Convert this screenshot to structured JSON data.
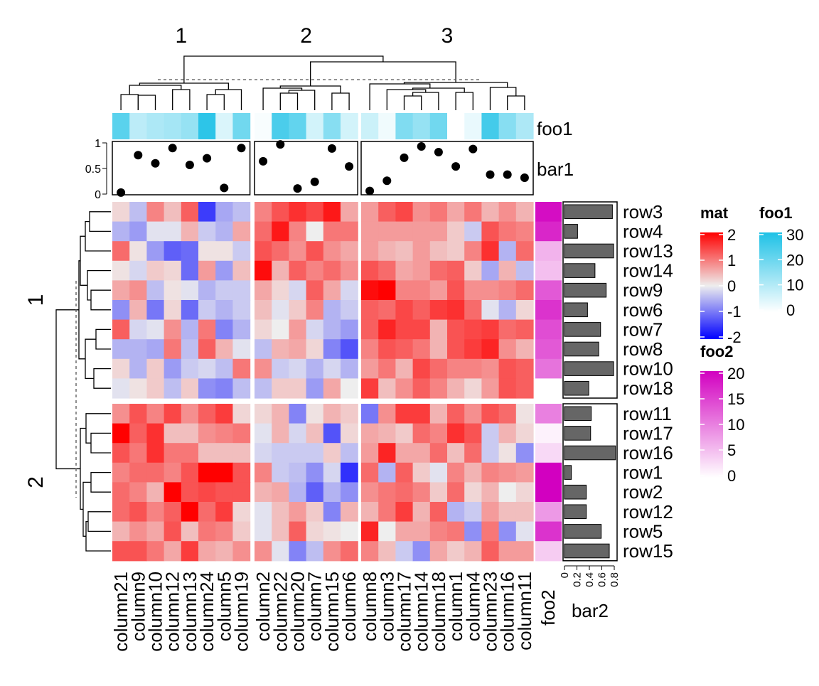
{
  "chart_data": {
    "type": "heatmap",
    "title": "",
    "color_scales": {
      "mat": {
        "title": "mat",
        "ticks": [
          2,
          1,
          0,
          -1,
          -2
        ],
        "low": "#0000FF",
        "mid": "#EEEEEE",
        "high": "#FF0000",
        "range": [
          -2,
          2
        ]
      },
      "foo1": {
        "title": "foo1",
        "ticks": [
          30,
          20,
          10,
          0
        ],
        "low": "#FFFFFF",
        "high": "#1EC1E6",
        "range": [
          0,
          30
        ]
      },
      "foo2": {
        "title": "foo2",
        "ticks": [
          20,
          15,
          10,
          5,
          0
        ],
        "low": "#FFFFFF",
        "high": "#D200C0",
        "range": [
          0,
          20
        ]
      }
    },
    "column_slices": [
      {
        "label": "1",
        "columns": [
          "column21",
          "column9",
          "column10",
          "column12",
          "column13",
          "column24",
          "column5",
          "column19"
        ]
      },
      {
        "label": "2",
        "columns": [
          "column2",
          "column22",
          "column20",
          "column7",
          "column15",
          "column6"
        ]
      },
      {
        "label": "3",
        "columns": [
          "column8",
          "column3",
          "column17",
          "column14",
          "column18",
          "column1",
          "column4",
          "column23",
          "column16",
          "column11"
        ]
      }
    ],
    "row_slices": [
      {
        "label": "1",
        "rows": [
          "row3",
          "row4",
          "row13",
          "row14",
          "row9",
          "row6",
          "row7",
          "row8",
          "row10",
          "row18"
        ]
      },
      {
        "label": "2",
        "rows": [
          "row11",
          "row17",
          "row16",
          "row1",
          "row2",
          "row12",
          "row5",
          "row15"
        ]
      }
    ],
    "matrix": [
      [
        0.2,
        -0.4,
        0.9,
        0.4,
        1.2,
        -1.5,
        -0.6,
        -0.4,
        0.9,
        1.3,
        1.6,
        1.4,
        1.8,
        0.6,
        0.7,
        1.2,
        1.4,
        0.8,
        1.0,
        0.6,
        1.0,
        0.5,
        0.8,
        0.5
      ],
      [
        -0.5,
        -0.7,
        -0.1,
        -0.1,
        0.5,
        -0.3,
        -0.5,
        0.6,
        1.1,
        1.8,
        0.9,
        0.0,
        1.0,
        1.0,
        0.7,
        0.7,
        0.7,
        0.7,
        0.7,
        0.3,
        -0.3,
        1.3,
        1.0,
        0.9
      ],
      [
        1.1,
        0.1,
        -0.7,
        -1.2,
        -1.1,
        0.1,
        0.1,
        -0.3,
        1.3,
        1.1,
        0.8,
        1.3,
        0.8,
        0.6,
        0.7,
        0.5,
        0.4,
        0.7,
        0.4,
        0.3,
        0.9,
        1.6,
        -0.5,
        1.1
      ],
      [
        0.1,
        -0.2,
        0.3,
        0.2,
        -1.1,
        0.7,
        -0.7,
        0.4,
        1.9,
        0.5,
        1.2,
        0.9,
        1.1,
        0.8,
        1.3,
        1.1,
        0.6,
        0.7,
        1.1,
        1.2,
        0.3,
        -0.6,
        0.5,
        -0.4
      ],
      [
        0.6,
        0.8,
        -0.4,
        0.1,
        -0.1,
        -0.5,
        -0.3,
        -0.3,
        0.6,
        0.2,
        -0.2,
        1.2,
        0.6,
        -0.2,
        1.9,
        2.0,
        0.9,
        0.9,
        0.7,
        1.3,
        0.8,
        0.8,
        0.9,
        1.1
      ],
      [
        -0.8,
        0.5,
        -1.0,
        0.2,
        -1.1,
        -0.3,
        -0.5,
        -0.3,
        0.4,
        -0.1,
        0.3,
        0.9,
        -0.5,
        -0.3,
        1.2,
        1.1,
        1.4,
        1.2,
        1.5,
        1.6,
        1.1,
        -0.1,
        -0.5,
        0.2
      ],
      [
        1.2,
        -0.2,
        -0.1,
        0.8,
        -0.5,
        1.0,
        -0.9,
        -0.5,
        0.2,
        0.0,
        0.7,
        -0.2,
        -0.5,
        -0.7,
        1.2,
        1.7,
        1.4,
        1.4,
        0.5,
        1.3,
        1.4,
        1.5,
        1.1,
        1.2
      ],
      [
        -0.5,
        -0.5,
        -0.6,
        1.0,
        -0.4,
        1.2,
        0.5,
        -0.1,
        -0.4,
        0.5,
        0.6,
        0.2,
        -0.9,
        -1.3,
        0.9,
        1.3,
        1.2,
        1.0,
        0.5,
        1.3,
        1.5,
        1.7,
        0.8,
        0.5
      ],
      [
        0.2,
        -0.5,
        0.3,
        -0.7,
        -0.3,
        -0.2,
        -0.4,
        1.0,
        0.8,
        -0.3,
        -0.2,
        -0.5,
        -0.2,
        -0.5,
        0.7,
        1.0,
        0.5,
        1.4,
        1.1,
        0.9,
        0.9,
        0.8,
        1.3,
        1.2
      ],
      [
        -0.1,
        0.1,
        0.3,
        -0.4,
        0.3,
        -0.8,
        -0.9,
        -0.4,
        -0.4,
        0.3,
        0.3,
        -0.7,
        0.6,
        0.0,
        1.5,
        0.4,
        0.8,
        1.2,
        0.9,
        0.5,
        0.2,
        0.7,
        1.3,
        1.2
      ],
      [
        0.8,
        1.3,
        0.9,
        1.4,
        0.8,
        1.2,
        1.5,
        0.2,
        0.2,
        0.5,
        -0.9,
        0.1,
        0.5,
        0.3,
        -1.0,
        0.8,
        1.5,
        1.5,
        0.5,
        1.2,
        0.8,
        1.3,
        1.1,
        0.1
      ],
      [
        2.0,
        1.2,
        1.6,
        0.4,
        0.4,
        0.8,
        0.9,
        1.0,
        -0.1,
        0.5,
        -0.2,
        0.4,
        -1.3,
        0.2,
        0.6,
        0.5,
        0.3,
        1.1,
        0.9,
        1.6,
        1.3,
        -0.3,
        0.5,
        0.2
      ],
      [
        1.3,
        1.0,
        1.6,
        1.0,
        1.0,
        0.4,
        0.4,
        0.4,
        -0.2,
        -0.3,
        -0.3,
        -0.3,
        0.3,
        -0.4,
        0.7,
        1.7,
        0.6,
        0.6,
        1.1,
        0.4,
        1.1,
        -0.3,
        0.1,
        -0.8
      ],
      [
        0.9,
        1.1,
        1.1,
        0.9,
        1.3,
        2.0,
        2.0,
        1.3,
        0.9,
        -0.3,
        -0.4,
        -0.8,
        -0.2,
        -1.6,
        1.1,
        -0.5,
        1.2,
        0.3,
        -0.1,
        0.9,
        0.5,
        0.9,
        0.8,
        0.7
      ],
      [
        1.1,
        0.9,
        0.5,
        2.0,
        1.3,
        1.4,
        1.3,
        1.3,
        0.5,
        0.6,
        -0.5,
        -1.2,
        -0.5,
        -0.8,
        0.8,
        1.0,
        1.1,
        0.9,
        0.3,
        1.1,
        0.2,
        0.5,
        0.0,
        0.2
      ],
      [
        1.1,
        1.3,
        0.9,
        1.2,
        2.0,
        1.1,
        1.5,
        0.2,
        -0.1,
        0.4,
        0.7,
        0.3,
        -0.9,
        0.5,
        0.5,
        1.0,
        1.5,
        0.5,
        1.2,
        -0.5,
        -0.3,
        0.7,
        0.4,
        0.4
      ],
      [
        0.5,
        0.8,
        0.6,
        1.3,
        0.4,
        1.0,
        0.9,
        0.3,
        -0.1,
        0.4,
        1.2,
        0.2,
        0.1,
        0.0,
        1.7,
        0.0,
        0.6,
        0.6,
        0.9,
        1.0,
        -0.8,
        1.0,
        -0.8,
        -0.1
      ],
      [
        1.3,
        1.3,
        1.0,
        0.6,
        1.5,
        0.6,
        0.5,
        0.8,
        0.8,
        -0.1,
        -0.9,
        -0.4,
        0.8,
        1.1,
        0.9,
        0.4,
        -0.3,
        -0.8,
        0.6,
        0.3,
        0.5,
        1.2,
        0.7,
        0.7
      ]
    ],
    "foo1": [
      22,
      9,
      11,
      12,
      14,
      28,
      5,
      19,
      1,
      24,
      21,
      6,
      16,
      6,
      7,
      2,
      17,
      14,
      19,
      0,
      3,
      25,
      16,
      11
    ],
    "bar1": {
      "label": "bar1",
      "ylim": [
        0,
        1
      ],
      "ticks": [
        "1",
        "0.5",
        "0"
      ],
      "values": [
        0.03,
        0.76,
        0.6,
        0.9,
        0.57,
        0.7,
        0.12,
        0.9,
        0.64,
        0.97,
        0.11,
        0.24,
        0.89,
        0.54,
        0.06,
        0.26,
        0.71,
        0.93,
        0.82,
        0.54,
        0.88,
        0.38,
        0.38,
        0.32
      ]
    },
    "foo2": [
      19,
      17,
      6,
      5,
      13,
      16,
      14,
      13,
      11,
      0,
      10,
      1,
      3,
      20,
      20,
      8,
      16,
      4
    ],
    "bar2": {
      "label": "bar2",
      "xlim": [
        0,
        0.85
      ],
      "ticks": [
        "0",
        "0.2",
        "0.4",
        "0.6",
        "0.8"
      ],
      "values": [
        0.77,
        0.21,
        0.79,
        0.49,
        0.67,
        0.37,
        0.58,
        0.55,
        0.79,
        0.39,
        0.43,
        0.42,
        0.82,
        0.11,
        0.35,
        0.35,
        0.59,
        0.72
      ]
    },
    "annotation_labels": {
      "foo1": "foo1",
      "bar1": "bar1",
      "foo2": "foo2",
      "bar2": "bar2"
    },
    "legends": [
      {
        "name": "mat",
        "labels": [
          "2",
          "1",
          "0",
          "-1",
          "-2"
        ]
      },
      {
        "name": "foo1",
        "labels": [
          "30",
          "20",
          "10",
          "0"
        ]
      },
      {
        "name": "foo2",
        "labels": [
          "20",
          "15",
          "10",
          "5",
          "0"
        ]
      }
    ],
    "legend_placement": "right"
  }
}
